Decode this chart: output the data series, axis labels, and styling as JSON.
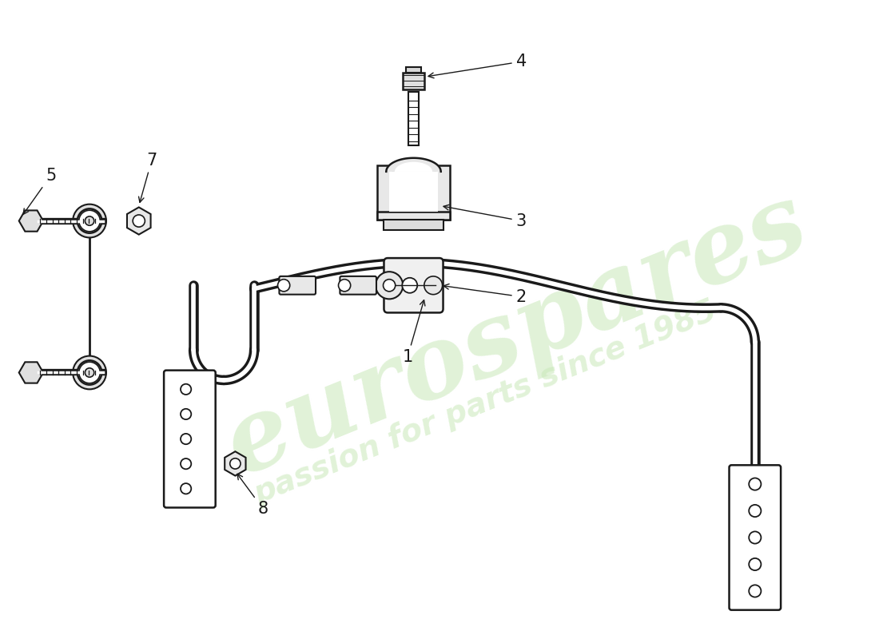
{
  "background_color": "#ffffff",
  "line_color": "#1a1a1a",
  "watermark_color": "#c8e8b8",
  "watermark_text1": "eurospares",
  "watermark_text2": "passion for parts since 1985",
  "figsize": [
    11.0,
    8.0
  ],
  "dpi": 100
}
